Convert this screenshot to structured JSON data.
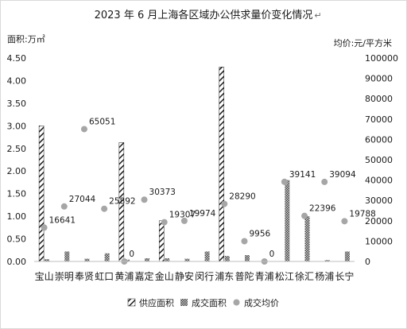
{
  "chart_data": {
    "type": "bar",
    "title": "2023 年 6 月上海各区域办公供求量价变化情况",
    "title_mark": "↵",
    "ylabel_left": "面积:万㎡",
    "ylabel_right": "均价:元/平方米",
    "y_left_range": [
      0,
      4.5
    ],
    "y_left_ticks": [
      "0.00",
      "0.50",
      "1.00",
      "1.50",
      "2.00",
      "2.50",
      "3.00",
      "3.50",
      "4.00",
      "4.50"
    ],
    "y_right_range": [
      0,
      100000
    ],
    "y_right_ticks": [
      "0",
      "10000",
      "20000",
      "30000",
      "40000",
      "50000",
      "60000",
      "70000",
      "80000",
      "90000",
      "100000"
    ],
    "categories": [
      "宝山",
      "嘉定",
      "金山",
      "静安",
      "闵行",
      "浦东",
      "普陀",
      "青浦",
      "松江",
      "徐汇",
      "杨浦",
      "长宁",
      "崇明",
      "奉贤",
      "虹口",
      "黄浦"
    ],
    "category_order_on_axis": [
      "宝山",
      "崇明",
      "奉贤",
      "虹口",
      "黄浦",
      "嘉定",
      "金山",
      "静安",
      "闵行",
      "浦东",
      "普陀",
      "青浦",
      "松江",
      "徐汇",
      "杨浦",
      "长宁"
    ],
    "series": [
      {
        "name": "供应面积",
        "axis": "left",
        "pattern": "diagonal-hatch",
        "values": [
          3.0,
          0.0,
          0.9,
          0.0,
          0.0,
          4.3,
          0.0,
          0.0,
          0.0,
          0.0,
          0.0,
          0.0,
          0.0,
          0.0,
          0.0,
          2.63
        ]
      },
      {
        "name": "成交面积",
        "axis": "left",
        "pattern": "cross-hatch",
        "values": [
          0.05,
          0.07,
          0.07,
          0.06,
          0.22,
          0.12,
          0.14,
          0.0,
          1.8,
          1.0,
          0.03,
          0.22,
          0.22,
          0.06,
          0.18,
          0.04
        ]
      },
      {
        "name": "成交均价",
        "axis": "right",
        "type": "scatter",
        "marker_color": "#a6a6a6",
        "values": [
          16641,
          30373,
          19307,
          19974,
          null,
          28290,
          9956,
          0,
          39141,
          22396,
          39094,
          19788,
          27044,
          65051,
          25892,
          0
        ],
        "labels": [
          "16641",
          "30373",
          "19307",
          "19974",
          "",
          "28290",
          "9956",
          "0",
          "39141",
          "22396",
          "39094",
          "19788",
          "27044",
          "65051",
          "25892",
          "0"
        ]
      }
    ],
    "legend_position": "bottom",
    "grid": false
  }
}
